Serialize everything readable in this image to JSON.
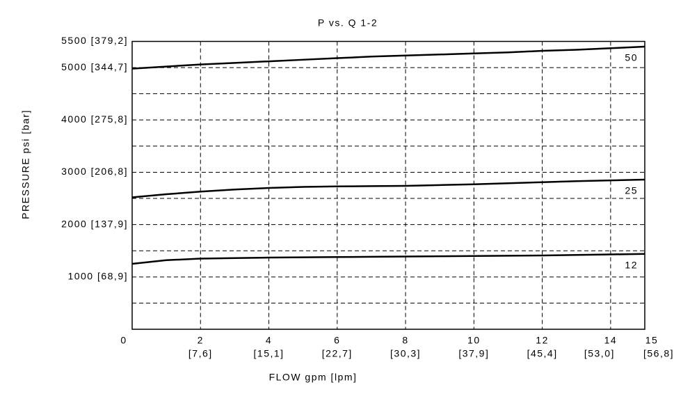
{
  "chart_data": {
    "type": "line",
    "title": "P vs. Q 1-2",
    "x_label": "FLOW gpm [lpm]",
    "y_label": "PRESSURE psi [bar]",
    "x": [
      0,
      1,
      2,
      3,
      4,
      5,
      6,
      7,
      8,
      9,
      10,
      11,
      12,
      13,
      14,
      15
    ],
    "series": [
      {
        "name": "50",
        "color": "#000000",
        "values": [
          4980,
          5020,
          5060,
          5090,
          5120,
          5150,
          5180,
          5210,
          5230,
          5250,
          5270,
          5290,
          5320,
          5340,
          5370,
          5400
        ]
      },
      {
        "name": "25",
        "color": "#000000",
        "values": [
          2520,
          2580,
          2630,
          2670,
          2700,
          2720,
          2730,
          2735,
          2740,
          2755,
          2770,
          2790,
          2810,
          2830,
          2845,
          2860
        ]
      },
      {
        "name": "12",
        "color": "#000000",
        "values": [
          1250,
          1320,
          1350,
          1360,
          1370,
          1375,
          1380,
          1385,
          1390,
          1395,
          1400,
          1405,
          1410,
          1420,
          1430,
          1440
        ]
      }
    ],
    "xlim": [
      0,
      15
    ],
    "xticks": [
      0,
      2,
      4,
      6,
      8,
      10,
      12,
      14,
      15
    ],
    "xtick_sublabels": [
      null,
      "[7,6]",
      "[15,1]",
      "[22,7]",
      "[30,3]",
      "[37,9]",
      "[45,4]",
      "[53,0]",
      "[56,8]"
    ],
    "ylim": [
      0,
      5500
    ],
    "yticks": [
      {
        "value": 1000,
        "label": "1000 [68,9]"
      },
      {
        "value": 2000,
        "label": "2000 [137,9]"
      },
      {
        "value": 3000,
        "label": "3000 [206,8]"
      },
      {
        "value": 4000,
        "label": "4000 [275,8]"
      },
      {
        "value": 5000,
        "label": "5000 [344,7]"
      },
      {
        "value": 5500,
        "label": "5500 [379,2]"
      }
    ],
    "yminor": [
      500,
      1500,
      2500,
      3500,
      4500
    ],
    "grid": true
  }
}
